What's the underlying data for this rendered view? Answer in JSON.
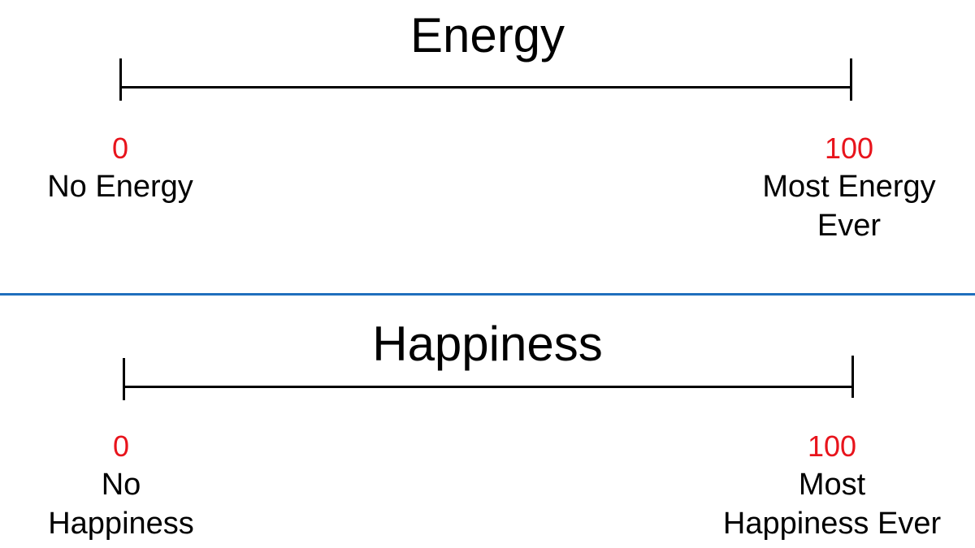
{
  "scales": {
    "energy": {
      "title": "Energy",
      "min": {
        "value": "0",
        "label": "No Energy"
      },
      "max": {
        "value": "100",
        "label": "Most Energy\nEver"
      }
    },
    "happiness": {
      "title": "Happiness",
      "min": {
        "value": "0",
        "label": "No\nHappiness"
      },
      "max": {
        "value": "100",
        "label": "Most\nHappiness Ever"
      }
    }
  },
  "colors": {
    "endpoint_value": "#e8141c",
    "divider": "#1f6fbd",
    "line": "#000000"
  }
}
